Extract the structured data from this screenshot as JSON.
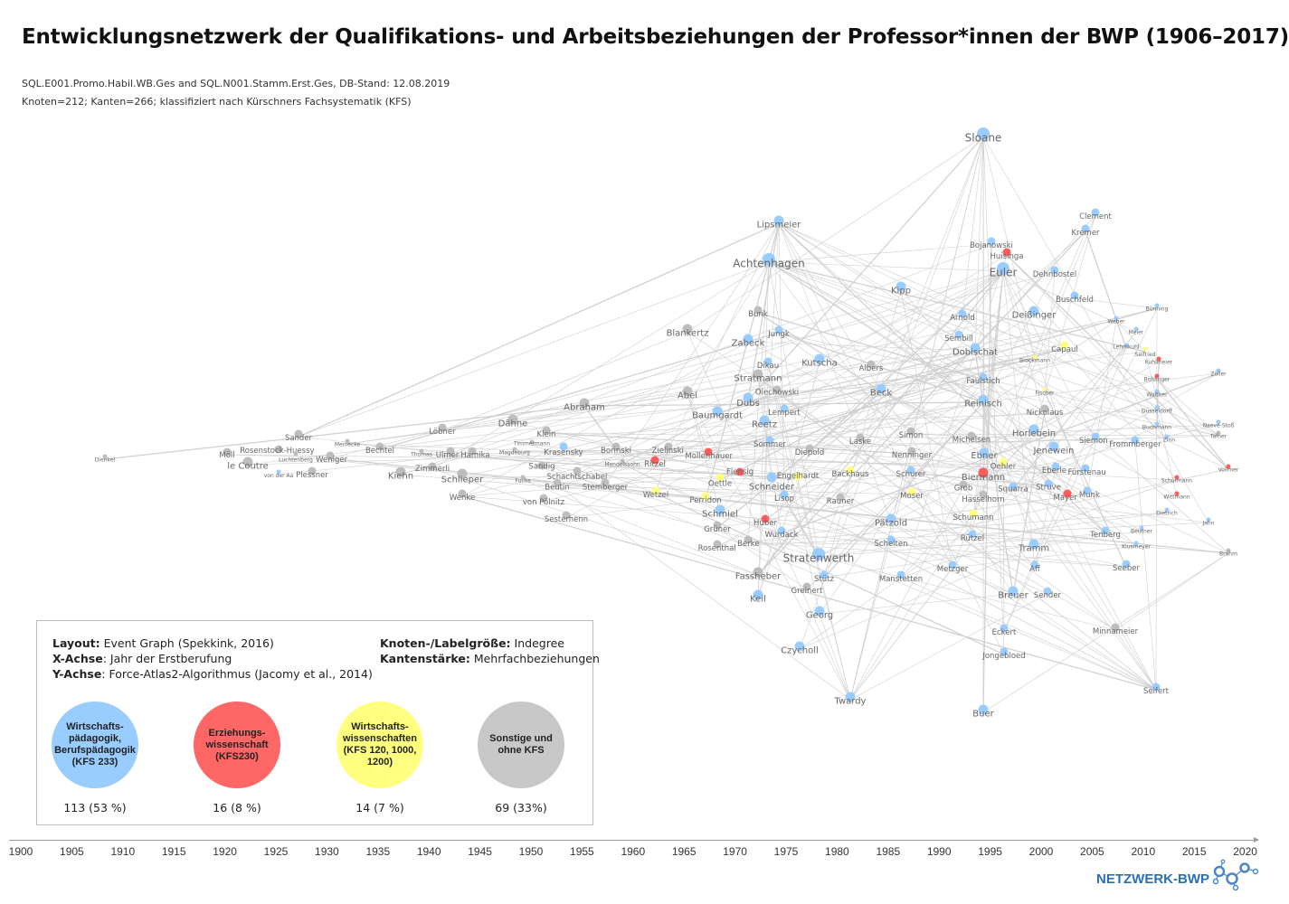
{
  "title": "Entwicklungsnetzwerk der Qualifikations- und Arbeitsbeziehungen der Professor*innen der BWP (1906–2017)",
  "subtitle_1": "SQL.E001.Promo.Habil.WB.Ges and SQL.N001.Stamm.Erst.Ges, DB-Stand: 12.08.2019",
  "subtitle_2": "Knoten=212; Kanten=266; klassifiziert nach Kürschners Fachsystematik (KFS)",
  "colors": {
    "b": "#99ccff",
    "r": "#ff5c5c",
    "y": "#ffff80",
    "g": "#bdbdbd",
    "edge": "#cfcfcf",
    "brand": "#2b6fb5"
  },
  "legend": {
    "layout_label": "Layout:",
    "layout_value": "Event Graph (Spekkink, 2016)",
    "x_label": "X-Achse",
    "x_value": ": Jahr der Erstberufung",
    "y_label": "Y-Achse",
    "y_value": ": Force-Atlas2-Algorithmus (Jacomy et al., 2014)",
    "size_label": "Knoten-/Labelgröße:",
    "size_value": "Indegree",
    "edge_label": "Kantenstärke:",
    "edge_value": "Mehrfachbeziehungen",
    "categories": [
      {
        "label": "Wirtschafts-\npädagogik,\nBerufspädagogik\n(KFS 233)",
        "count": "113 (53 %)",
        "color": "#99ccff"
      },
      {
        "label": "Erziehungs-\nwissenschaft\n(KFS230)",
        "count": "16 (8 %)",
        "color": "#ff6666"
      },
      {
        "label": "Wirtschafts-\nwissenschaften\n(KFS 120, 1000,\n1200)",
        "count": "14 (7 %)",
        "color": "#ffff80"
      },
      {
        "label": "Sonstige und\nohne KFS",
        "count": "69 (33%)",
        "color": "#c8c8c8"
      }
    ]
  },
  "axis": {
    "years": [
      "1900",
      "1905",
      "1910",
      "1915",
      "1920",
      "1925",
      "1930",
      "1935",
      "1940",
      "1945",
      "1950",
      "1955",
      "1960",
      "1965",
      "1970",
      "1975",
      "1980",
      "1985",
      "1990",
      "1995",
      "2000",
      "2005",
      "2010",
      "2015",
      "2020"
    ]
  },
  "logo_text": "NETZWERK-BWP",
  "nodes": [
    {
      "name": "Sloane",
      "c": "b",
      "s": 3
    },
    {
      "name": "Clement",
      "c": "b",
      "s": 1
    },
    {
      "name": "Kremer",
      "c": "b",
      "s": 1
    },
    {
      "name": "Lipsmeier",
      "c": "b",
      "s": 2
    },
    {
      "name": "Bojanowski",
      "c": "b",
      "s": 1
    },
    {
      "name": "Huisinga",
      "c": "r",
      "s": 1
    },
    {
      "name": "Achtenhagen",
      "c": "b",
      "s": 3
    },
    {
      "name": "Dehnbostel",
      "c": "b",
      "s": 1
    },
    {
      "name": "Euler",
      "c": "b",
      "s": 3
    },
    {
      "name": "Kipp",
      "c": "b",
      "s": 2
    },
    {
      "name": "Buschfeld",
      "c": "b",
      "s": 1
    },
    {
      "name": "Bunk",
      "c": "g",
      "s": 1
    },
    {
      "name": "Deißinger",
      "c": "b",
      "s": 2
    },
    {
      "name": "Arnold",
      "c": "b",
      "s": 1
    },
    {
      "name": "Blankertz",
      "c": "g",
      "s": 2
    },
    {
      "name": "Jungk",
      "c": "b",
      "s": 1
    },
    {
      "name": "Zabeck",
      "c": "b",
      "s": 2
    },
    {
      "name": "Sembill",
      "c": "b",
      "s": 1
    },
    {
      "name": "Dobischat",
      "c": "b",
      "s": 2
    },
    {
      "name": "Capaul",
      "c": "y",
      "s": 1
    },
    {
      "name": "Dikau",
      "c": "b",
      "s": 1
    },
    {
      "name": "Kutscha",
      "c": "b",
      "s": 2
    },
    {
      "name": "Albers",
      "c": "g",
      "s": 1
    },
    {
      "name": "Stratmann",
      "c": "g",
      "s": 2
    },
    {
      "name": "Faulstich",
      "c": "b",
      "s": 1
    },
    {
      "name": "Abel",
      "c": "g",
      "s": 2
    },
    {
      "name": "Olechowski",
      "c": "g",
      "s": 1
    },
    {
      "name": "Beck",
      "c": "b",
      "s": 2
    },
    {
      "name": "Dubs",
      "c": "b",
      "s": 2
    },
    {
      "name": "Reinisch",
      "c": "b",
      "s": 2
    },
    {
      "name": "Nickolaus",
      "c": "g",
      "s": 1
    },
    {
      "name": "Lempert",
      "c": "b",
      "s": 1
    },
    {
      "name": "Baumgardt",
      "c": "b",
      "s": 2
    },
    {
      "name": "Abraham",
      "c": "g",
      "s": 2
    },
    {
      "name": "Dähne",
      "c": "g",
      "s": 2
    },
    {
      "name": "Reetz",
      "c": "b",
      "s": 2
    },
    {
      "name": "Klein",
      "c": "g",
      "s": 1
    },
    {
      "name": "Löbner",
      "c": "g",
      "s": 1
    },
    {
      "name": "Horlebein",
      "c": "b",
      "s": 2
    },
    {
      "name": "Simon",
      "c": "g",
      "s": 1
    },
    {
      "name": "Michelsen",
      "c": "g",
      "s": 1
    },
    {
      "name": "Siemon",
      "c": "b",
      "s": 1
    },
    {
      "name": "Frommberger",
      "c": "b",
      "s": 1
    },
    {
      "name": "Sander",
      "c": "g",
      "s": 1
    },
    {
      "name": "Sommer",
      "c": "b",
      "s": 1
    },
    {
      "name": "Laske",
      "c": "g",
      "s": 1
    },
    {
      "name": "Bechtel",
      "c": "g",
      "s": 1
    },
    {
      "name": "Jenewein",
      "c": "b",
      "s": 2
    },
    {
      "name": "Krasensky",
      "c": "b",
      "s": 1
    },
    {
      "name": "Borinski",
      "c": "g",
      "s": 1
    },
    {
      "name": "Zielinski",
      "c": "g",
      "s": 1
    },
    {
      "name": "Diepold",
      "c": "g",
      "s": 1
    },
    {
      "name": "Ulmer",
      "c": "g",
      "s": 1
    },
    {
      "name": "Hamika",
      "c": "g",
      "s": 1
    },
    {
      "name": "Rosenstock-Huessy",
      "c": "g",
      "s": 1
    },
    {
      "name": "Möll",
      "c": "g",
      "s": 1
    },
    {
      "name": "Nenninger",
      "c": "g",
      "s": 1
    },
    {
      "name": "Mollenhauer",
      "c": "r",
      "s": 1
    },
    {
      "name": "Ebner",
      "c": "b",
      "s": 2
    },
    {
      "name": "Weniger",
      "c": "g",
      "s": 1
    },
    {
      "name": "Ritzel",
      "c": "r",
      "s": 1
    },
    {
      "name": "Oehler",
      "c": "y",
      "s": 1
    },
    {
      "name": "le Coutre",
      "c": "g",
      "s": 2
    },
    {
      "name": "Eberle",
      "c": "b",
      "s": 1
    },
    {
      "name": "Fürstenau",
      "c": "b",
      "s": 1
    },
    {
      "name": "Zimmerli",
      "c": "g",
      "s": 1
    },
    {
      "name": "Sandig",
      "c": "g",
      "s": 1
    },
    {
      "name": "Backhaus",
      "c": "y",
      "s": 1
    },
    {
      "name": "Schurer",
      "c": "b",
      "s": 1
    },
    {
      "name": "Flensig",
      "c": "r",
      "s": 1
    },
    {
      "name": "Kiehn",
      "c": "g",
      "s": 2
    },
    {
      "name": "Plessner",
      "c": "g",
      "s": 1
    },
    {
      "name": "Schachtschabel",
      "c": "g",
      "s": 1
    },
    {
      "name": "Biermann",
      "c": "r",
      "s": 2
    },
    {
      "name": "Schlieper",
      "c": "g",
      "s": 2
    },
    {
      "name": "Oettle",
      "c": "y",
      "s": 1
    },
    {
      "name": "Schneider",
      "c": "b",
      "s": 2
    },
    {
      "name": "Engelhardt",
      "c": "y",
      "s": 1
    },
    {
      "name": "Grob",
      "c": "g",
      "s": 1
    },
    {
      "name": "Beutin",
      "c": "g",
      "s": 1
    },
    {
      "name": "Stemberger",
      "c": "g",
      "s": 1
    },
    {
      "name": "Squarra",
      "c": "b",
      "s": 1
    },
    {
      "name": "Struve",
      "c": "b",
      "s": 1
    },
    {
      "name": "Hasselhorn",
      "c": "g",
      "s": 1
    },
    {
      "name": "Wetzel",
      "c": "y",
      "s": 1
    },
    {
      "name": "Moser",
      "c": "y",
      "s": 1
    },
    {
      "name": "Mayer",
      "c": "r",
      "s": 1
    },
    {
      "name": "Munk",
      "c": "b",
      "s": 1
    },
    {
      "name": "Lisop",
      "c": "b",
      "s": 1
    },
    {
      "name": "Wenke",
      "c": "g",
      "s": 1
    },
    {
      "name": "Perridon",
      "c": "y",
      "s": 1
    },
    {
      "name": "Rauner",
      "c": "g",
      "s": 1
    },
    {
      "name": "von Pölnitz",
      "c": "g",
      "s": 1
    },
    {
      "name": "Schmiel",
      "c": "b",
      "s": 2
    },
    {
      "name": "Schumann",
      "c": "y",
      "s": 1
    },
    {
      "name": "Pätzold",
      "c": "b",
      "s": 2
    },
    {
      "name": "Huber",
      "c": "r",
      "s": 1
    },
    {
      "name": "Sesterhenn",
      "c": "g",
      "s": 1
    },
    {
      "name": "Grüner",
      "c": "g",
      "s": 1
    },
    {
      "name": "Wurdack",
      "c": "b",
      "s": 1
    },
    {
      "name": "Tenberg",
      "c": "b",
      "s": 1
    },
    {
      "name": "Rützel",
      "c": "b",
      "s": 1
    },
    {
      "name": "Berke",
      "c": "g",
      "s": 1
    },
    {
      "name": "Schelten",
      "c": "b",
      "s": 1
    },
    {
      "name": "Rosenthal",
      "c": "g",
      "s": 1
    },
    {
      "name": "Tramm",
      "c": "b",
      "s": 2
    },
    {
      "name": "Stratenwerth",
      "c": "b",
      "s": 3
    },
    {
      "name": "Seeber",
      "c": "b",
      "s": 1
    },
    {
      "name": "Metzger",
      "c": "b",
      "s": 1
    },
    {
      "name": "Aff",
      "c": "b",
      "s": 1
    },
    {
      "name": "Fassheber",
      "c": "g",
      "s": 2
    },
    {
      "name": "Stütz",
      "c": "b",
      "s": 1
    },
    {
      "name": "Manstetten",
      "c": "b",
      "s": 1
    },
    {
      "name": "Greinert",
      "c": "g",
      "s": 1
    },
    {
      "name": "Breuer",
      "c": "b",
      "s": 2
    },
    {
      "name": "Sender",
      "c": "b",
      "s": 1
    },
    {
      "name": "Keil",
      "c": "b",
      "s": 2
    },
    {
      "name": "Georg",
      "c": "b",
      "s": 2
    },
    {
      "name": "Minnameier",
      "c": "g",
      "s": 1
    },
    {
      "name": "Eckert",
      "c": "b",
      "s": 1
    },
    {
      "name": "Czycholl",
      "c": "b",
      "s": 2
    },
    {
      "name": "Jongebloed",
      "c": "b",
      "s": 1
    },
    {
      "name": "Seifert",
      "c": "b",
      "s": 1
    },
    {
      "name": "Twardy",
      "c": "b",
      "s": 2
    },
    {
      "name": "Buer",
      "c": "b",
      "s": 2
    },
    {
      "name": "Bünning",
      "c": "b",
      "s": 0
    },
    {
      "name": "Weber",
      "c": "b",
      "s": 0
    },
    {
      "name": "Meier",
      "c": "b",
      "s": 0
    },
    {
      "name": "Lehmkuhl",
      "c": "b",
      "s": 0
    },
    {
      "name": "Seifried",
      "c": "y",
      "s": 0
    },
    {
      "name": "Kuhlmeier",
      "c": "r",
      "s": 0
    },
    {
      "name": "Bohlinger",
      "c": "r",
      "s": 0
    },
    {
      "name": "Walther",
      "c": "b",
      "s": 0
    },
    {
      "name": "Düsseldorff",
      "c": "b",
      "s": 0
    },
    {
      "name": "Buchmann",
      "c": "b",
      "s": 0
    },
    {
      "name": "Zinn",
      "c": "b",
      "s": 0
    },
    {
      "name": "Naeve-Stoß",
      "c": "b",
      "s": 0
    },
    {
      "name": "Tafner",
      "c": "g",
      "s": 0
    },
    {
      "name": "Vollmer",
      "c": "r",
      "s": 0
    },
    {
      "name": "Schürmann",
      "c": "r",
      "s": 0
    },
    {
      "name": "Wittmann",
      "c": "r",
      "s": 0
    },
    {
      "name": "Dietrich",
      "c": "b",
      "s": 0
    },
    {
      "name": "Jahn",
      "c": "b",
      "s": 0
    },
    {
      "name": "Brahm",
      "c": "g",
      "s": 0
    },
    {
      "name": "Klusmeyer",
      "c": "b",
      "s": 0
    },
    {
      "name": "Beutner",
      "c": "b",
      "s": 0
    },
    {
      "name": "Fischer",
      "c": "y",
      "s": 0
    },
    {
      "name": "Brockmann",
      "c": "y",
      "s": 0
    },
    {
      "name": "Zöller",
      "c": "b",
      "s": 0
    },
    {
      "name": "Dienkel",
      "c": "g",
      "s": 0
    },
    {
      "name": "Meinecke",
      "c": "g",
      "s": 0
    },
    {
      "name": "Luchtenberg",
      "c": "g",
      "s": 0
    },
    {
      "name": "von der Aa",
      "c": "b",
      "s": 0
    },
    {
      "name": "Thomas",
      "c": "g",
      "s": 0
    },
    {
      "name": "Timmermann",
      "c": "g",
      "s": 0
    },
    {
      "name": "Magdeburg",
      "c": "g",
      "s": 0
    },
    {
      "name": "Fuchs",
      "c": "g",
      "s": 0
    },
    {
      "name": "Mendelssohn",
      "c": "g",
      "s": 0
    }
  ]
}
